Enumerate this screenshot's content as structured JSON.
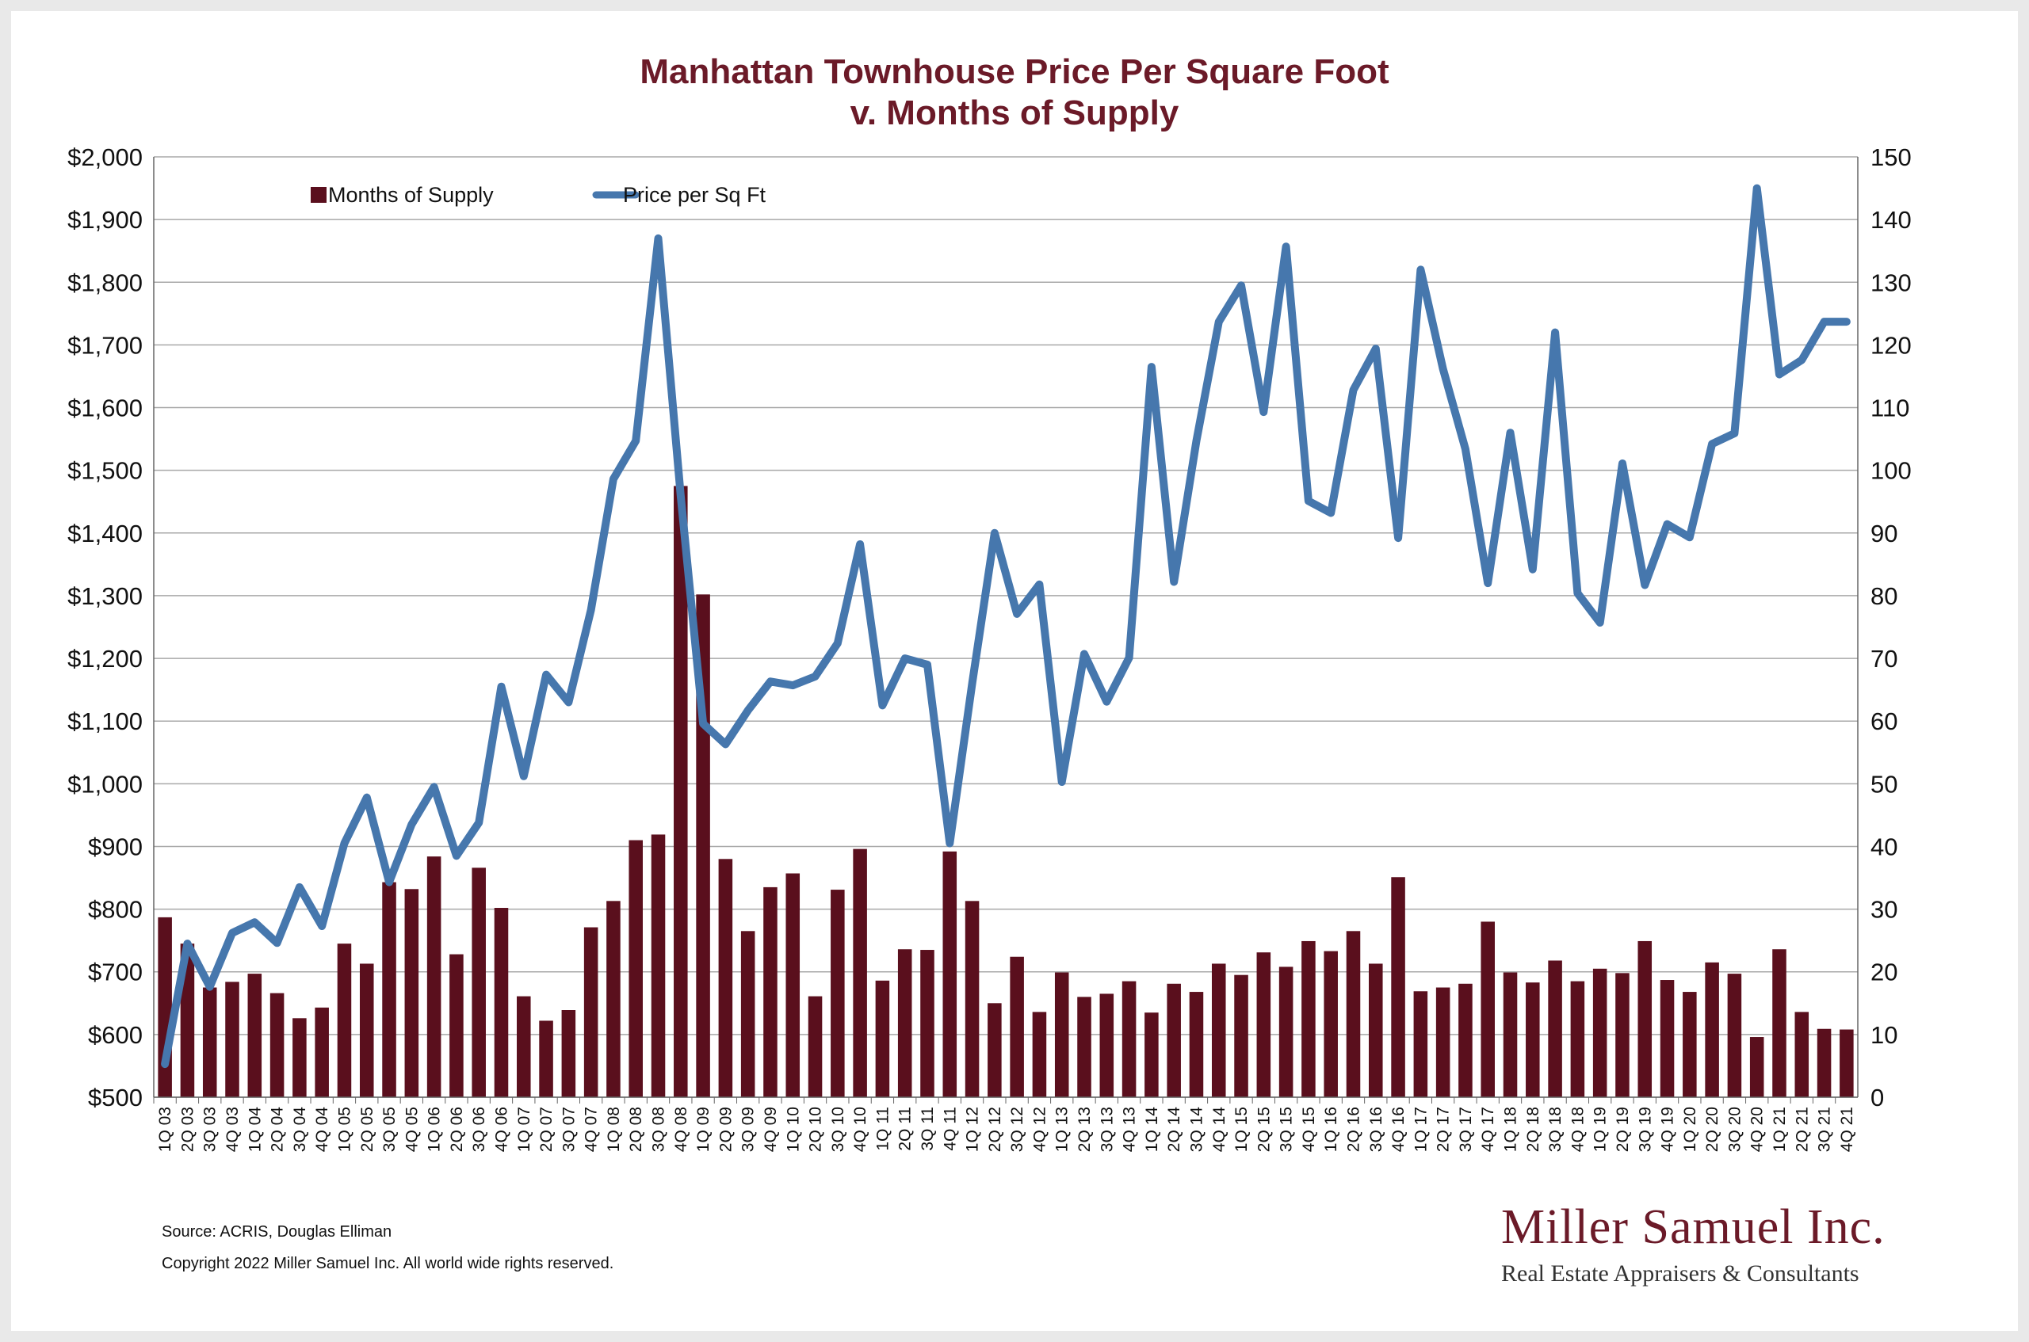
{
  "title_line1": "Manhattan Townhouse Price Per Square Foot",
  "title_line2": "v. Months of Supply",
  "source_note": "Source: ACRIS, Douglas Elliman",
  "copyright_note": "Copyright 2022 Miller Samuel Inc.  All world wide rights reserved.",
  "brand": {
    "name": "Miller Samuel Inc.",
    "tagline": "Real Estate Appraisers & Consultants"
  },
  "colors": {
    "bars": "#5a0f1d",
    "line": "#4677ad",
    "title": "#6b1a28",
    "grid": "#a8a8a8"
  },
  "chart_data": {
    "type": "bar+line",
    "title": "Manhattan Townhouse Price Per Square Foot v. Months of Supply",
    "legend_position": "top-left",
    "y_left": {
      "label": "Price per Sq Ft",
      "range": [
        500,
        2000
      ],
      "ticks": [
        "$500",
        "$600",
        "$700",
        "$800",
        "$900",
        "$1,000",
        "$1,100",
        "$1,200",
        "$1,300",
        "$1,400",
        "$1,500",
        "$1,600",
        "$1,700",
        "$1,800",
        "$1,900",
        "$2,000"
      ]
    },
    "y_right": {
      "label": "Months of Supply",
      "range": [
        0,
        150
      ],
      "ticks": [
        "0",
        "10",
        "20",
        "30",
        "40",
        "50",
        "60",
        "70",
        "80",
        "90",
        "100",
        "110",
        "120",
        "130",
        "140",
        "150"
      ]
    },
    "categories": [
      "1Q 03",
      "2Q 03",
      "3Q 03",
      "4Q 03",
      "1Q 04",
      "2Q 04",
      "3Q 04",
      "4Q 04",
      "1Q 05",
      "2Q 05",
      "3Q 05",
      "4Q 05",
      "1Q 06",
      "2Q 06",
      "3Q 06",
      "4Q 06",
      "1Q 07",
      "2Q 07",
      "3Q 07",
      "4Q 07",
      "1Q 08",
      "2Q 08",
      "3Q 08",
      "4Q 08",
      "1Q 09",
      "2Q 09",
      "3Q 09",
      "4Q 09",
      "1Q 10",
      "2Q 10",
      "3Q 10",
      "4Q 10",
      "1Q 11",
      "2Q 11",
      "3Q 11",
      "4Q 11",
      "1Q 12",
      "2Q 12",
      "3Q 12",
      "4Q 12",
      "1Q 13",
      "2Q 13",
      "3Q 13",
      "4Q 13",
      "1Q 14",
      "2Q 14",
      "3Q 14",
      "4Q 14",
      "1Q 15",
      "2Q 15",
      "3Q 15",
      "4Q 15",
      "1Q 16",
      "2Q 16",
      "3Q 16",
      "4Q 16",
      "1Q 17",
      "2Q 17",
      "3Q 17",
      "4Q 17",
      "1Q 18",
      "2Q 18",
      "3Q 18",
      "4Q 18",
      "1Q 19",
      "2Q 19",
      "3Q 19",
      "4Q 19",
      "1Q 20",
      "2Q 20",
      "3Q 20",
      "4Q 20",
      "1Q 21",
      "2Q 21",
      "3Q 21",
      "4Q 21"
    ],
    "series": [
      {
        "name": "Months of Supply",
        "axis": "right",
        "type": "bar",
        "values": [
          28.7,
          24.5,
          17.5,
          18.4,
          19.7,
          16.6,
          12.6,
          14.3,
          24.5,
          21.3,
          34.3,
          33.2,
          38.4,
          22.8,
          36.6,
          30.2,
          16.1,
          12.2,
          13.9,
          27.1,
          31.3,
          41,
          41.9,
          97.5,
          80.2,
          38,
          26.5,
          33.5,
          35.7,
          16.1,
          33.1,
          39.6,
          18.6,
          23.6,
          23.5,
          39.2,
          31.3,
          15,
          22.4,
          13.6,
          19.9,
          16,
          16.5,
          18.5,
          13.5,
          18.1,
          16.8,
          21.3,
          19.5,
          23.1,
          20.8,
          24.9,
          23.3,
          26.5,
          21.3,
          35.1,
          16.9,
          17.5,
          18.1,
          28,
          19.9,
          18.3,
          21.8,
          18.5,
          20.5,
          19.8,
          24.9,
          18.7,
          16.8,
          21.5,
          19.7,
          9.6,
          23.6,
          13.6,
          10.9,
          10.8
        ]
      },
      {
        "name": "Price per Sq Ft",
        "axis": "left",
        "type": "line",
        "values": [
          553,
          745,
          676,
          762,
          779,
          746,
          835,
          773,
          905,
          978,
          843,
          935,
          995,
          885,
          938,
          1155,
          1012,
          1174,
          1130,
          1277,
          1486,
          1547,
          1870,
          1460,
          1096,
          1063,
          1117,
          1163,
          1157,
          1171,
          1224,
          1382,
          1125,
          1200,
          1190,
          905,
          1160,
          1400,
          1271,
          1318,
          1003,
          1207,
          1131,
          1201,
          1665,
          1322,
          1547,
          1737,
          1795,
          1593,
          1857,
          1451,
          1432,
          1628,
          1694,
          1392,
          1820,
          1662,
          1534,
          1320,
          1560,
          1342,
          1720,
          1304,
          1257,
          1511,
          1317,
          1414,
          1393,
          1542,
          1559,
          1950,
          1653,
          1676,
          1737,
          1737
        ]
      }
    ]
  }
}
